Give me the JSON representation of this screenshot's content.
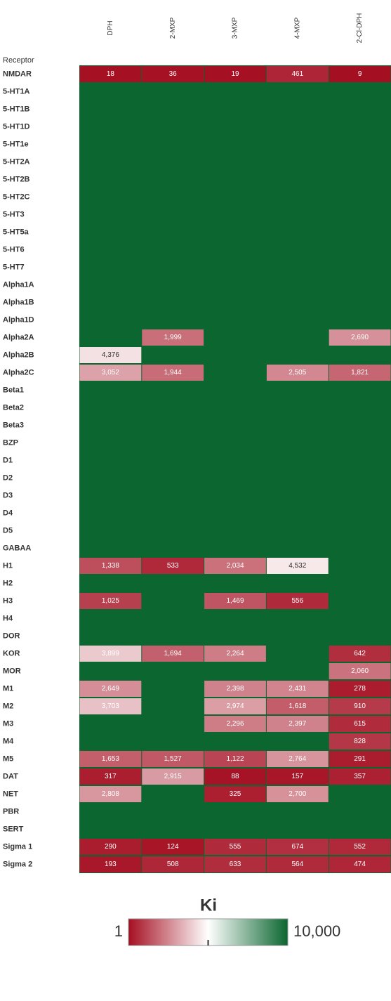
{
  "chart_data": {
    "type": "heatmap",
    "y_label": "Receptor",
    "columns": [
      "DPH",
      "2-MXP",
      "3-MXP",
      "4-MXP",
      "2-Cl-DPH"
    ],
    "rows": [
      "NMDAR",
      "5-HT1A",
      "5-HT1B",
      "5-HT1D",
      "5-HT1e",
      "5-HT2A",
      "5-HT2B",
      "5-HT2C",
      "5-HT3",
      "5-HT5a",
      "5-HT6",
      "5-HT7",
      "Alpha1A",
      "Alpha1B",
      "Alpha1D",
      "Alpha2A",
      "Alpha2B",
      "Alpha2C",
      "Beta1",
      "Beta2",
      "Beta3",
      "BZP",
      "D1",
      "D2",
      "D3",
      "D4",
      "D5",
      "GABAA",
      "H1",
      "H2",
      "H3",
      "H4",
      "DOR",
      "KOR",
      "MOR",
      "M1",
      "M2",
      "M3",
      "M4",
      "M5",
      "DAT",
      "NET",
      "PBR",
      "SERT",
      "Sigma 1",
      "Sigma 2"
    ],
    "values": [
      [
        18,
        36,
        19,
        461,
        9
      ],
      [
        null,
        null,
        null,
        null,
        null
      ],
      [
        null,
        null,
        null,
        null,
        null
      ],
      [
        null,
        null,
        null,
        null,
        null
      ],
      [
        null,
        null,
        null,
        null,
        null
      ],
      [
        null,
        null,
        null,
        null,
        null
      ],
      [
        null,
        null,
        null,
        null,
        null
      ],
      [
        null,
        null,
        null,
        null,
        null
      ],
      [
        null,
        null,
        null,
        null,
        null
      ],
      [
        null,
        null,
        null,
        null,
        null
      ],
      [
        null,
        null,
        null,
        null,
        null
      ],
      [
        null,
        null,
        null,
        null,
        null
      ],
      [
        null,
        null,
        null,
        null,
        null
      ],
      [
        null,
        null,
        null,
        null,
        null
      ],
      [
        null,
        null,
        null,
        null,
        null
      ],
      [
        null,
        1999,
        null,
        null,
        2690
      ],
      [
        4376,
        null,
        null,
        null,
        null
      ],
      [
        3052,
        1944,
        null,
        2505,
        1821
      ],
      [
        null,
        null,
        null,
        null,
        null
      ],
      [
        null,
        null,
        null,
        null,
        null
      ],
      [
        null,
        null,
        null,
        null,
        null
      ],
      [
        null,
        null,
        null,
        null,
        null
      ],
      [
        null,
        null,
        null,
        null,
        null
      ],
      [
        null,
        null,
        null,
        null,
        null
      ],
      [
        null,
        null,
        null,
        null,
        null
      ],
      [
        null,
        null,
        null,
        null,
        null
      ],
      [
        null,
        null,
        null,
        null,
        null
      ],
      [
        null,
        null,
        null,
        null,
        null
      ],
      [
        1338,
        533,
        2034,
        4532,
        null
      ],
      [
        null,
        null,
        null,
        null,
        null
      ],
      [
        1025,
        null,
        1469,
        556,
        null
      ],
      [
        null,
        null,
        null,
        null,
        null
      ],
      [
        null,
        null,
        null,
        null,
        null
      ],
      [
        3899,
        1694,
        2264,
        null,
        642
      ],
      [
        null,
        null,
        null,
        null,
        2060
      ],
      [
        2649,
        null,
        2398,
        2431,
        278
      ],
      [
        3703,
        null,
        2974,
        1618,
        910
      ],
      [
        null,
        null,
        2296,
        2397,
        615
      ],
      [
        null,
        null,
        null,
        null,
        828
      ],
      [
        1653,
        1527,
        1122,
        2764,
        291
      ],
      [
        317,
        2915,
        88,
        157,
        357
      ],
      [
        2808,
        null,
        325,
        2700,
        null
      ],
      [
        null,
        null,
        null,
        null,
        null
      ],
      [
        null,
        null,
        null,
        null,
        null
      ],
      [
        290,
        124,
        555,
        674,
        552
      ],
      [
        193,
        508,
        633,
        564,
        474
      ]
    ],
    "value_labels": [
      [
        "18",
        "36",
        "19",
        "461",
        "9"
      ],
      [
        null,
        null,
        null,
        null,
        null
      ],
      [
        null,
        null,
        null,
        null,
        null
      ],
      [
        null,
        null,
        null,
        null,
        null
      ],
      [
        null,
        null,
        null,
        null,
        null
      ],
      [
        null,
        null,
        null,
        null,
        null
      ],
      [
        null,
        null,
        null,
        null,
        null
      ],
      [
        null,
        null,
        null,
        null,
        null
      ],
      [
        null,
        null,
        null,
        null,
        null
      ],
      [
        null,
        null,
        null,
        null,
        null
      ],
      [
        null,
        null,
        null,
        null,
        null
      ],
      [
        null,
        null,
        null,
        null,
        null
      ],
      [
        null,
        null,
        null,
        null,
        null
      ],
      [
        null,
        null,
        null,
        null,
        null
      ],
      [
        null,
        null,
        null,
        null,
        null
      ],
      [
        null,
        "1,999",
        null,
        null,
        "2,690"
      ],
      [
        "4,376",
        null,
        null,
        null,
        null
      ],
      [
        "3,052",
        "1,944",
        null,
        "2,505",
        "1,821"
      ],
      [
        null,
        null,
        null,
        null,
        null
      ],
      [
        null,
        null,
        null,
        null,
        null
      ],
      [
        null,
        null,
        null,
        null,
        null
      ],
      [
        null,
        null,
        null,
        null,
        null
      ],
      [
        null,
        null,
        null,
        null,
        null
      ],
      [
        null,
        null,
        null,
        null,
        null
      ],
      [
        null,
        null,
        null,
        null,
        null
      ],
      [
        null,
        null,
        null,
        null,
        null
      ],
      [
        null,
        null,
        null,
        null,
        null
      ],
      [
        null,
        null,
        null,
        null,
        null
      ],
      [
        "1,338",
        "533",
        "2,034",
        "4,532",
        null
      ],
      [
        null,
        null,
        null,
        null,
        null
      ],
      [
        "1,025",
        null,
        "1,469",
        "556",
        null
      ],
      [
        null,
        null,
        null,
        null,
        null
      ],
      [
        null,
        null,
        null,
        null,
        null
      ],
      [
        "3,899",
        "1,694",
        "2,264",
        null,
        "642"
      ],
      [
        null,
        null,
        null,
        null,
        "2,060"
      ],
      [
        "2,649",
        null,
        "2,398",
        "2,431",
        "278"
      ],
      [
        "3,703",
        null,
        "2,974",
        "1,618",
        "910"
      ],
      [
        null,
        null,
        "2,296",
        "2,397",
        "615"
      ],
      [
        null,
        null,
        null,
        null,
        "828"
      ],
      [
        "1,653",
        "1,527",
        "1,122",
        "2,764",
        "291"
      ],
      [
        "317",
        "2,915",
        "88",
        "157",
        "357"
      ],
      [
        "2,808",
        null,
        "325",
        "2,700",
        null
      ],
      [
        null,
        null,
        null,
        null,
        null
      ],
      [
        null,
        null,
        null,
        null,
        null
      ],
      [
        "290",
        "124",
        "555",
        "674",
        "552"
      ],
      [
        "193",
        "508",
        "633",
        "564",
        "474"
      ]
    ],
    "colorbar": {
      "title": "Ki",
      "range": [
        1,
        10000
      ],
      "ticks": [
        1,
        {
          "value": 10000,
          "label": "10,000"
        }
      ],
      "colors": [
        "#a50f22",
        "#ffffff",
        "#0b6630"
      ]
    }
  }
}
